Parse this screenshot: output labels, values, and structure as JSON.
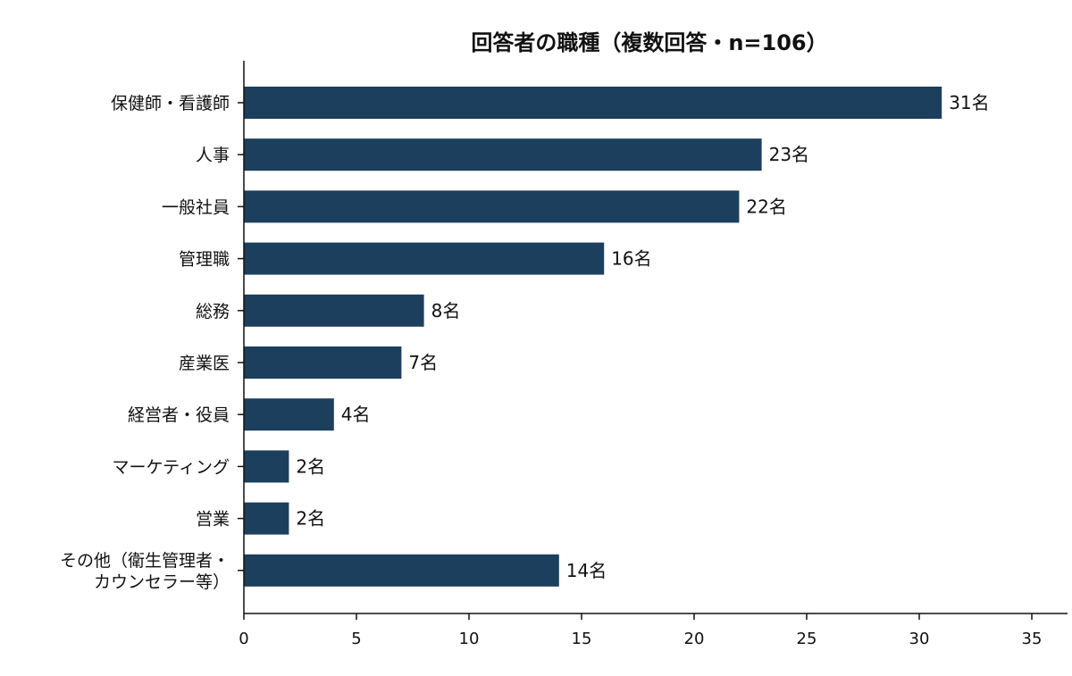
{
  "chart_data": {
    "type": "bar",
    "orientation": "horizontal",
    "title": "回答者の職種（複数回答・n=106）",
    "categories": [
      "保健師・看護師",
      "人事",
      "一般社員",
      "管理職",
      "総務",
      "産業医",
      "経営者・役員",
      "マーケティング",
      "営業",
      "その他（衛生管理者・\nカウンセラー等）"
    ],
    "values": [
      31,
      23,
      22,
      16,
      8,
      7,
      4,
      2,
      2,
      14
    ],
    "value_suffix": "名",
    "xlim": [
      0,
      35
    ],
    "xticks": [
      0,
      5,
      10,
      15,
      20,
      25,
      30,
      35
    ],
    "xlabel": "",
    "ylabel": "",
    "grid": false,
    "bar_color": "#1b3f5c"
  }
}
